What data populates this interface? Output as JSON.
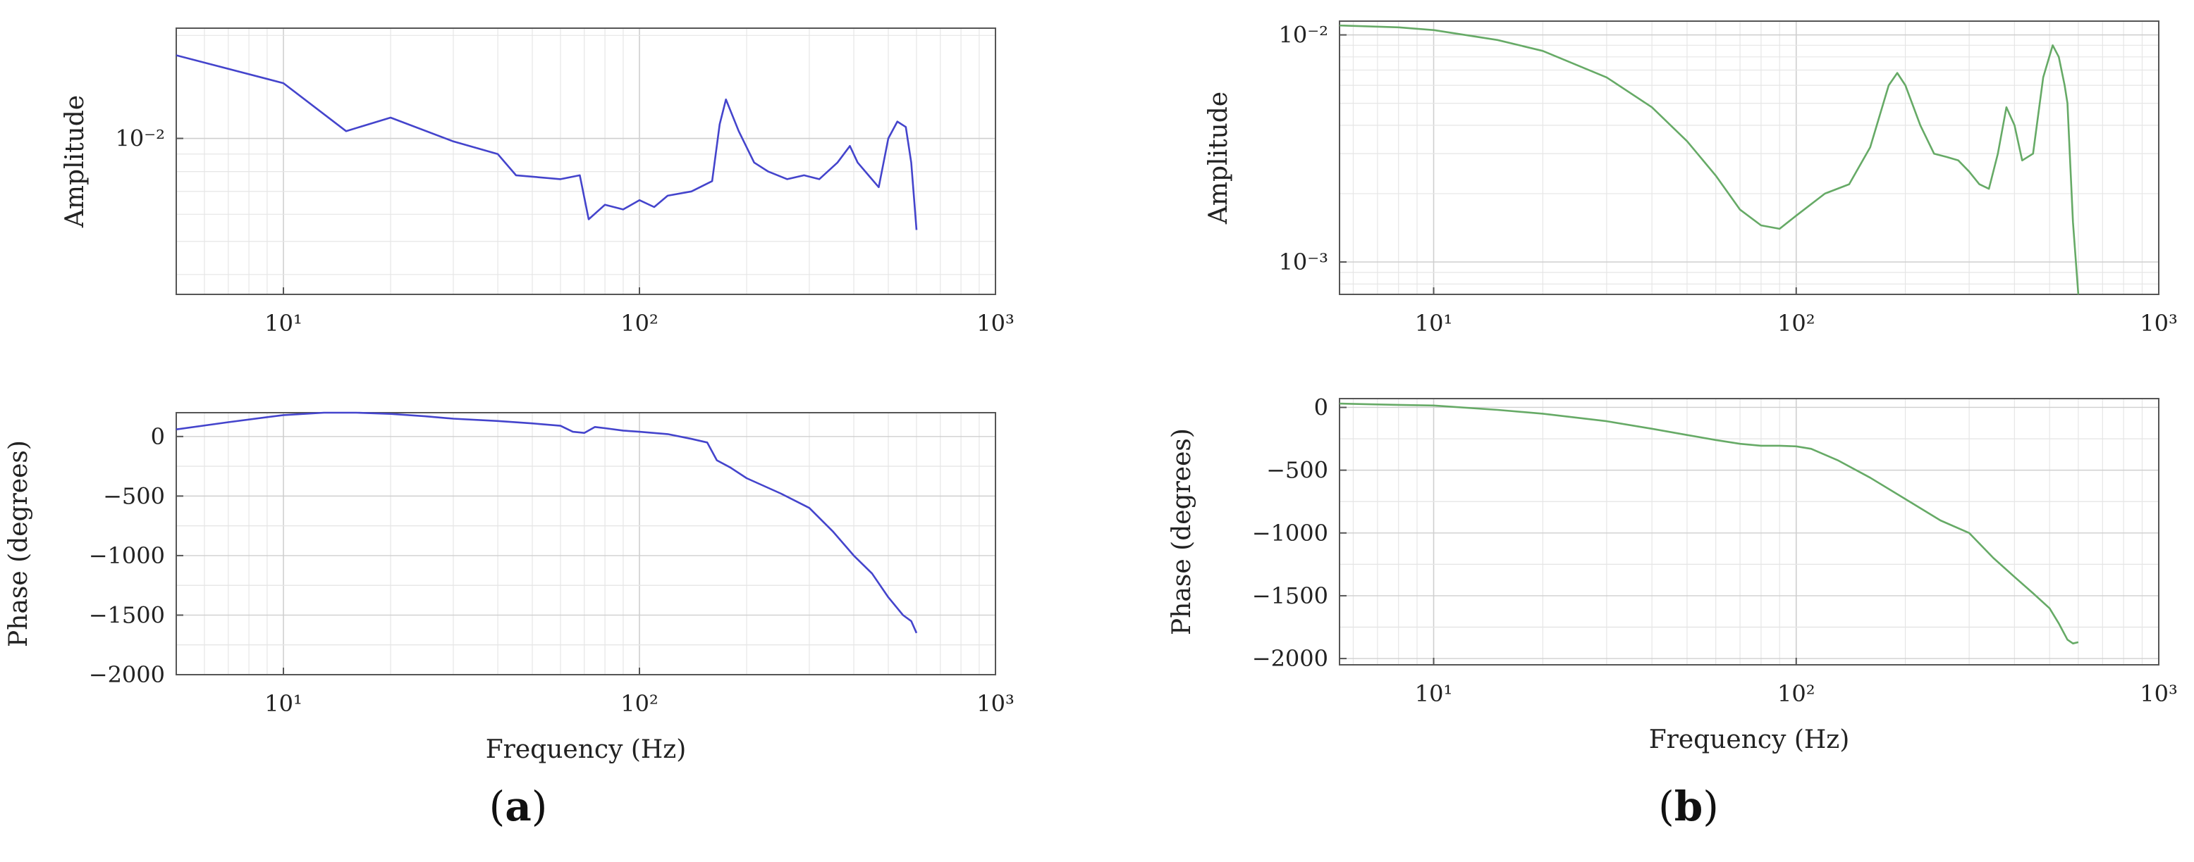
{
  "panels": [
    {
      "label": "a",
      "paren_open": "(",
      "paren_close": ")"
    },
    {
      "label": "b",
      "paren_open": "(",
      "paren_close": ")"
    }
  ],
  "chart_data": [
    {
      "id": "a-amplitude",
      "panel": "a",
      "type": "line",
      "ylabel": "Amplitude",
      "xlabel": "",
      "x_scale": "log",
      "y_scale": "log",
      "xlim": [
        5,
        1000
      ],
      "ylim": [
        0.0035,
        0.021
      ],
      "x_ticks": [
        {
          "value": 10,
          "label": "10¹"
        },
        {
          "value": 100,
          "label": "10²"
        },
        {
          "value": 1000,
          "label": "10³"
        }
      ],
      "y_ticks": [
        {
          "value": 0.01,
          "label": "10⁻²"
        }
      ],
      "grid": true,
      "color": "#4444cc",
      "series": [
        {
          "x": [
            5,
            10,
            15,
            20,
            30,
            40,
            45,
            60,
            68,
            72,
            80,
            90,
            100,
            110,
            120,
            140,
            160,
            168,
            175,
            190,
            210,
            230,
            260,
            290,
            320,
            360,
            390,
            410,
            440,
            470,
            500,
            530,
            560,
            580,
            600
          ],
          "y": [
            0.0175,
            0.0145,
            0.0105,
            0.0115,
            0.0098,
            0.009,
            0.0078,
            0.0076,
            0.0078,
            0.0058,
            0.0064,
            0.0062,
            0.0066,
            0.0063,
            0.0068,
            0.007,
            0.0075,
            0.011,
            0.013,
            0.0105,
            0.0085,
            0.008,
            0.0076,
            0.0078,
            0.0076,
            0.0085,
            0.0095,
            0.0085,
            0.0078,
            0.0072,
            0.01,
            0.0112,
            0.0108,
            0.0085,
            0.0054
          ]
        }
      ]
    },
    {
      "id": "a-phase",
      "panel": "a",
      "type": "line",
      "ylabel": "Phase (degrees)",
      "xlabel": "Frequency (Hz)",
      "x_scale": "log",
      "y_scale": "linear",
      "xlim": [
        5,
        1000
      ],
      "ylim": [
        -2000,
        200
      ],
      "x_ticks": [
        {
          "value": 10,
          "label": "10¹"
        },
        {
          "value": 100,
          "label": "10²"
        },
        {
          "value": 1000,
          "label": "10³"
        }
      ],
      "y_ticks": [
        {
          "value": 0,
          "label": "0"
        },
        {
          "value": -500,
          "label": "−500"
        },
        {
          "value": -1000,
          "label": "−1000"
        },
        {
          "value": -1500,
          "label": "−1500"
        },
        {
          "value": -2000,
          "label": "−2000"
        }
      ],
      "grid": true,
      "color": "#4444cc",
      "series": [
        {
          "x": [
            5,
            7,
            10,
            13,
            16,
            20,
            25,
            30,
            40,
            50,
            60,
            65,
            70,
            75,
            80,
            90,
            100,
            120,
            140,
            155,
            165,
            180,
            200,
            250,
            300,
            350,
            400,
            450,
            500,
            550,
            580,
            600
          ],
          "y": [
            60,
            120,
            180,
            210,
            200,
            190,
            170,
            150,
            130,
            110,
            90,
            40,
            30,
            80,
            70,
            50,
            40,
            20,
            -20,
            -50,
            -200,
            -260,
            -350,
            -480,
            -600,
            -800,
            -1000,
            -1150,
            -1350,
            -1500,
            -1550,
            -1650
          ]
        }
      ]
    },
    {
      "id": "b-amplitude",
      "panel": "b",
      "type": "line",
      "ylabel": "Amplitude",
      "xlabel": "",
      "x_scale": "log",
      "y_scale": "log",
      "xlim": [
        5.5,
        1000
      ],
      "ylim": [
        0.00072,
        0.0115
      ],
      "x_ticks": [
        {
          "value": 10,
          "label": "10¹"
        },
        {
          "value": 100,
          "label": "10²"
        },
        {
          "value": 1000,
          "label": "10³"
        }
      ],
      "y_ticks": [
        {
          "value": 0.01,
          "label": "10⁻²"
        },
        {
          "value": 0.001,
          "label": "10⁻³"
        }
      ],
      "grid": true,
      "color": "#66aa66",
      "series": [
        {
          "x": [
            5.5,
            8,
            10,
            15,
            20,
            30,
            40,
            50,
            60,
            70,
            80,
            90,
            100,
            120,
            140,
            160,
            180,
            190,
            200,
            220,
            240,
            260,
            280,
            300,
            320,
            340,
            360,
            380,
            400,
            420,
            450,
            480,
            510,
            530,
            550,
            560,
            580,
            600
          ],
          "y": [
            0.011,
            0.0108,
            0.0105,
            0.0095,
            0.0085,
            0.0065,
            0.0048,
            0.0034,
            0.0024,
            0.0017,
            0.00145,
            0.0014,
            0.0016,
            0.002,
            0.0022,
            0.0032,
            0.006,
            0.0068,
            0.006,
            0.004,
            0.003,
            0.0029,
            0.0028,
            0.0025,
            0.0022,
            0.0021,
            0.003,
            0.0048,
            0.004,
            0.0028,
            0.003,
            0.0065,
            0.009,
            0.008,
            0.006,
            0.005,
            0.0015,
            0.0006
          ]
        }
      ]
    },
    {
      "id": "b-phase",
      "panel": "b",
      "type": "line",
      "ylabel": "Phase (degrees)",
      "xlabel": "Frequency (Hz)",
      "x_scale": "log",
      "y_scale": "linear",
      "xlim": [
        5.5,
        1000
      ],
      "ylim": [
        -2050,
        70
      ],
      "x_ticks": [
        {
          "value": 10,
          "label": "10¹"
        },
        {
          "value": 100,
          "label": "10²"
        },
        {
          "value": 1000,
          "label": "10³"
        }
      ],
      "y_ticks": [
        {
          "value": 0,
          "label": "0"
        },
        {
          "value": -500,
          "label": "−500"
        },
        {
          "value": -1000,
          "label": "−1000"
        },
        {
          "value": -1500,
          "label": "−1500"
        },
        {
          "value": -2000,
          "label": "−2000"
        }
      ],
      "grid": true,
      "color": "#66aa66",
      "series": [
        {
          "x": [
            5.5,
            8,
            10,
            15,
            20,
            30,
            40,
            50,
            60,
            70,
            80,
            90,
            100,
            110,
            130,
            160,
            200,
            250,
            300,
            350,
            400,
            450,
            500,
            530,
            560,
            580,
            600
          ],
          "y": [
            30,
            20,
            15,
            -20,
            -50,
            -110,
            -170,
            -220,
            -260,
            -290,
            -305,
            -305,
            -310,
            -330,
            -420,
            -560,
            -730,
            -900,
            -1000,
            -1200,
            -1350,
            -1480,
            -1600,
            -1720,
            -1850,
            -1880,
            -1870
          ]
        }
      ]
    }
  ]
}
